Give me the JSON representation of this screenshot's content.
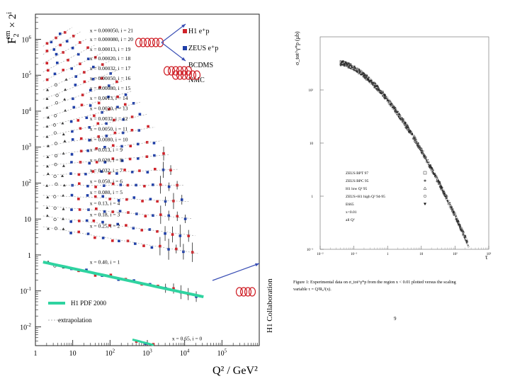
{
  "colors": {
    "h1": "#d0232a",
    "zeus": "#1f3fa8",
    "fit_line": "#2fd3a0",
    "arrow": "#3a4fb5",
    "axis": "#222222",
    "light_grid": "#cfcfcf"
  },
  "chart_data": [
    {
      "type": "scatter",
      "title": "",
      "ylabel_main": "F",
      "ylabel_sub": "2",
      "ylabel_sup": "em",
      "ylabel_tail": "× 2",
      "ylabel_tail_sup": "i",
      "xlabel": "Q² / GeV²",
      "side_label": "H1 Collaboration",
      "x_scale": "log",
      "y_scale": "log",
      "xlim": [
        1,
        1000000
      ],
      "ylim": [
        0.003,
        5000000
      ],
      "x_tick_labels": [
        {
          "value": 1,
          "base": "1",
          "exp": ""
        },
        {
          "value": 10,
          "base": "10",
          "exp": ""
        },
        {
          "value": 100,
          "base": "10",
          "exp": "2"
        },
        {
          "value": 1000,
          "base": "10",
          "exp": "3"
        },
        {
          "value": 10000,
          "base": "10",
          "exp": "4"
        },
        {
          "value": 100000,
          "base": "10",
          "exp": "5"
        }
      ],
      "y_tick_labels": [
        {
          "value": 0.01,
          "base": "10",
          "exp": "-2"
        },
        {
          "value": 0.1,
          "base": "10",
          "exp": "-1"
        },
        {
          "value": 1,
          "base": "1",
          "exp": ""
        },
        {
          "value": 10,
          "base": "10",
          "exp": ""
        },
        {
          "value": 100,
          "base": "10",
          "exp": "2"
        },
        {
          "value": 1000,
          "base": "10",
          "exp": "3"
        },
        {
          "value": 10000,
          "base": "10",
          "exp": "4"
        },
        {
          "value": 100000,
          "base": "10",
          "exp": "5"
        },
        {
          "value": 1000000,
          "base": "10",
          "exp": "6"
        }
      ],
      "legend": [
        {
          "label": "H1 e⁺p",
          "marker": "square",
          "color": "#d0232a"
        },
        {
          "label": "ZEUS e⁺p",
          "marker": "square",
          "color": "#1f3fa8"
        },
        {
          "label": "BCDMS",
          "marker": "circle",
          "color": "#222222"
        },
        {
          "label": "NMC",
          "marker": "triangle",
          "color": "#222222"
        }
      ],
      "fit_legend": "H1 PDF 2000",
      "extrap_legend": "extrapolation",
      "series": [
        {
          "x_label": "x = 0.000050, i = 21",
          "i": 21,
          "q2_range": [
            2,
            6
          ],
          "level": 2200000
        },
        {
          "x_label": "x = 0.000080, i = 20",
          "i": 20,
          "q2_range": [
            2,
            10
          ],
          "level": 1200000
        },
        {
          "x_label": "x = 0.00013, i = 19",
          "i": 19,
          "q2_range": [
            2,
            15
          ],
          "level": 620000
        },
        {
          "x_label": "x = 0.00020, i = 18",
          "i": 18,
          "q2_range": [
            2,
            25
          ],
          "level": 330000
        },
        {
          "x_label": "x = 0.00032, i = 17",
          "i": 17,
          "q2_range": [
            2,
            40
          ],
          "level": 170000
        },
        {
          "x_label": "x = 0.00050, i = 16",
          "i": 16,
          "q2_range": [
            2,
            60
          ],
          "level": 88000
        },
        {
          "x_label": "x = 0.00080, i = 15",
          "i": 15,
          "q2_range": [
            2,
            100
          ],
          "level": 45000
        },
        {
          "x_label": "x = 0.0013, i = 14",
          "i": 14,
          "q2_range": [
            2,
            150
          ],
          "level": 23000
        },
        {
          "x_label": "x = 0.0020, i = 13",
          "i": 13,
          "q2_range": [
            2,
            250
          ],
          "level": 11500
        },
        {
          "x_label": "x = 0.0032, i = 12",
          "i": 12,
          "q2_range": [
            2,
            400
          ],
          "level": 5800
        },
        {
          "x_label": "x = 0.0050, i = 11",
          "i": 11,
          "q2_range": [
            2,
            600
          ],
          "level": 2900
        },
        {
          "x_label": "x = 0.0080, i = 10",
          "i": 10,
          "q2_range": [
            2,
            1000
          ],
          "level": 1450
        },
        {
          "x_label": "x = 0.013, i = 9",
          "i": 9,
          "q2_range": [
            2,
            1500
          ],
          "level": 720
        },
        {
          "x_label": "x = 0.020, i = 8",
          "i": 8,
          "q2_range": [
            2,
            2500
          ],
          "level": 360
        },
        {
          "x_label": "x = 0.032, i = 7",
          "i": 7,
          "q2_range": [
            2,
            4000
          ],
          "level": 180
        },
        {
          "x_label": "x = 0.050, i = 6",
          "i": 6,
          "q2_range": [
            2,
            6000
          ],
          "level": 88
        },
        {
          "x_label": "x = 0.080, i = 5",
          "i": 5,
          "q2_range": [
            2,
            8000
          ],
          "level": 42
        },
        {
          "x_label": "x = 0.13, i = 4",
          "i": 4,
          "q2_range": [
            2,
            10000
          ],
          "level": 20
        },
        {
          "x_label": "x = 0.18, i = 3",
          "i": 3,
          "q2_range": [
            2,
            12000
          ],
          "level": 9.5
        },
        {
          "x_label": "x = 0.25, i = 2",
          "i": 2,
          "q2_range": [
            2,
            15000
          ],
          "level": 4.4
        },
        {
          "x_label": "x = 0.40, i = 1",
          "i": 1,
          "q2_range": [
            2,
            20000
          ],
          "level": 0.42
        },
        {
          "x_label": "x = 0.65, i = 0",
          "i": 0,
          "q2_range": [
            500,
            20000
          ],
          "level": 0.012
        }
      ]
    },
    {
      "type": "scatter",
      "title": "",
      "ylabel": "σ_tot^γ*p (μb)",
      "xlabel": "τ",
      "x_scale": "log",
      "y_scale": "log",
      "xlim": [
        0.01,
        1000
      ],
      "ylim": [
        0.1,
        1000
      ],
      "x_tick_labels": [
        "10⁻²",
        "10⁻¹",
        "1",
        "10",
        "10²",
        "10³"
      ],
      "y_tick_labels": [
        "10⁻¹",
        "1",
        "10",
        "10²"
      ],
      "legend": [
        {
          "label": "ZEUS BPT 97",
          "marker": "open-square"
        },
        {
          "label": "ZEUS BPC 95",
          "marker": "star"
        },
        {
          "label": "H1 low Q² 95",
          "marker": "open-triangle"
        },
        {
          "label": "ZEUS+H1 high Q² 94-95",
          "marker": "open-circle"
        },
        {
          "label": "E665",
          "marker": "filled-triangle"
        },
        {
          "label": "x<0.01",
          "marker": ""
        },
        {
          "label": "all Q²",
          "marker": ""
        }
      ],
      "curve": {
        "tau_start": 0.04,
        "tau_end": 250,
        "sigma_start": 320,
        "sigma_mid_tau": 1,
        "sigma_mid": 130,
        "sigma_end": 0.12
      },
      "caption_line1": "Figure 1: Experimental data on σ_tot^γ*p from the region x < 0.01 plotted versus the scaling",
      "caption_line2": "variable τ = Q²R₀²(x).",
      "page_number": "9"
    }
  ]
}
